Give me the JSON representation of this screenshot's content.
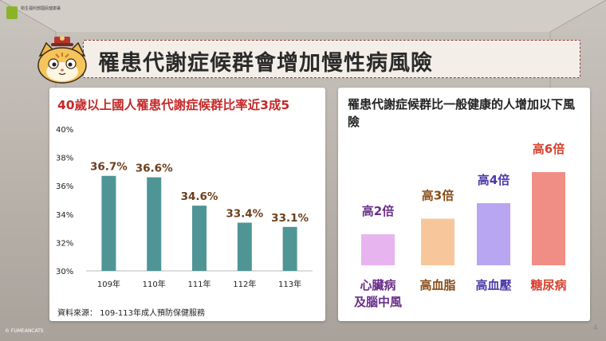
{
  "logo_text": "衛生福利部國民健康署",
  "title": "罹患代謝症候群會增加慢性病風險",
  "left_panel": {
    "title": "40歲以上國人罹患代謝症候群比率近3成5",
    "source": "資料來源： 109-113年成人預防保健服務"
  },
  "right_panel": {
    "title": "罹患代謝症候群比一般健康的人增加以下風險"
  },
  "page_number": "4",
  "copyright": "© FUMEANCATS",
  "colors": {
    "left_bar": "#4f9596",
    "left_label": "#6b3f1d",
    "accent_red": "#c62828"
  },
  "chart_data": [
    {
      "type": "bar",
      "title": "40歲以上國人罹患代謝症候群比率近3成5",
      "categories": [
        "109年",
        "110年",
        "111年",
        "112年",
        "113年"
      ],
      "values": [
        36.7,
        36.6,
        34.6,
        33.4,
        33.1
      ],
      "data_labels": [
        "36.7%",
        "36.6%",
        "34.6%",
        "33.4%",
        "33.1%"
      ],
      "ylim": [
        30,
        40
      ],
      "yticks": [
        "30%",
        "32%",
        "34%",
        "36%",
        "38%",
        "40%"
      ],
      "ytick_values": [
        30,
        32,
        34,
        36,
        38,
        40
      ],
      "grid": false,
      "legend": "none"
    },
    {
      "type": "bar",
      "title": "罹患代謝症候群比一般健康的人增加以下風險",
      "categories": [
        "心臟病及腦中風",
        "高血脂",
        "高血壓",
        "糖尿病"
      ],
      "category_lines": [
        [
          "心臟病",
          "及腦中風"
        ],
        [
          "高血脂"
        ],
        [
          "高血壓"
        ],
        [
          "糖尿病"
        ]
      ],
      "values": [
        2,
        3,
        4,
        6
      ],
      "data_labels": [
        "高2倍",
        "高3倍",
        "高4倍",
        "高6倍"
      ],
      "bar_colors": [
        "#e8b4f0",
        "#f7c79b",
        "#b8a6f2",
        "#f08d85"
      ],
      "label_colors": [
        "#6a2f8a",
        "#8a4b17",
        "#4a3aa8",
        "#d9412f"
      ],
      "grid": false,
      "legend": "none"
    }
  ]
}
